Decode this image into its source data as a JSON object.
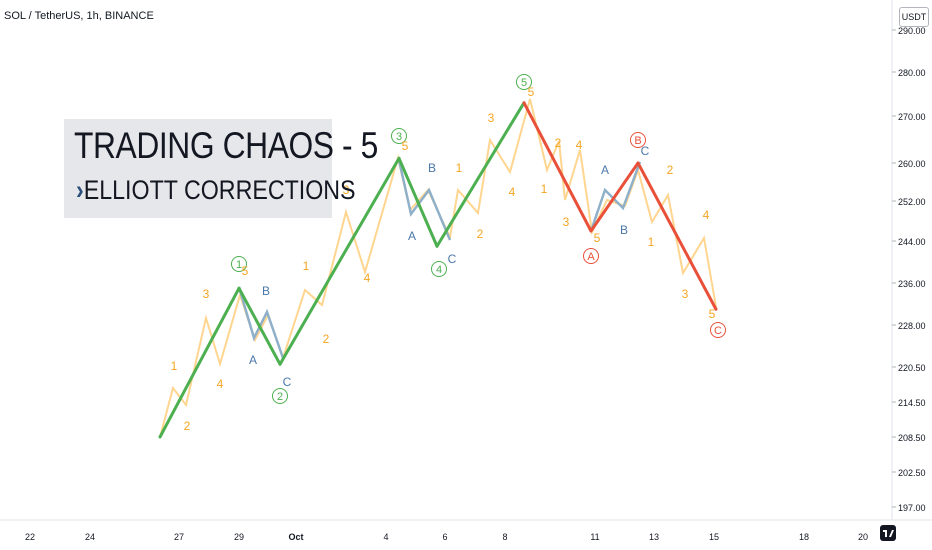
{
  "header": {
    "symbol": "SOL / TetherUS, 1h, BINANCE",
    "currency": "USDT"
  },
  "overlay": {
    "title": "TRADING CHAOS - 5",
    "subtitle_prefix": "›",
    "subtitle": "ELLIOTT CORRECTIONS"
  },
  "colors": {
    "impulse": "#4caf50",
    "correction": "#e8503a",
    "sub_corr": "#8fb0c9",
    "minor": "#ffd58f",
    "orange_label": "#f5a623",
    "blue_label": "#4a78a8",
    "green_circle": "#4caf50",
    "red_circle": "#e8503a"
  },
  "chart_data": {
    "type": "line",
    "title": "",
    "y_ticks": [
      "290.00",
      "280.00",
      "270.00",
      "260.00",
      "252.00",
      "244.00",
      "236.00",
      "228.00",
      "220.50",
      "214.50",
      "208.50",
      "202.50",
      "197.00"
    ],
    "x_ticks": [
      "22",
      "24",
      "27",
      "29",
      "Oct",
      "4",
      "6",
      "8",
      "11",
      "13",
      "15",
      "18",
      "20"
    ],
    "series": [
      {
        "name": "",
        "role": "impulse",
        "points": [
          {
            "x": "27",
            "y": 208.5
          },
          {
            "x": "29",
            "y": 235
          },
          {
            "x": "30",
            "y": 221
          },
          {
            "x": "4",
            "y": 261
          },
          {
            "x": "6",
            "y": 243
          },
          {
            "x": "8",
            "y": 273
          }
        ]
      },
      {
        "name": "",
        "role": "correction",
        "points": [
          {
            "x": "8",
            "y": 273
          },
          {
            "x": "11",
            "y": 246
          },
          {
            "x": "12",
            "y": 260
          },
          {
            "x": "15",
            "y": 231
          }
        ]
      }
    ],
    "wave_labels": [
      {
        "text": "1",
        "style": "green-circle",
        "near": "29"
      },
      {
        "text": "2",
        "style": "green-circle",
        "near": "30"
      },
      {
        "text": "3",
        "style": "green-circle",
        "near": "4"
      },
      {
        "text": "4",
        "style": "green-circle",
        "near": "6"
      },
      {
        "text": "5",
        "style": "green-circle",
        "near": "8"
      },
      {
        "text": "A",
        "style": "red-circle",
        "near": "11"
      },
      {
        "text": "B",
        "style": "red-circle",
        "near": "12"
      },
      {
        "text": "C",
        "style": "red-circle",
        "near": "15"
      }
    ],
    "minor_labels": [
      {
        "text": "1",
        "color": "orange"
      },
      {
        "text": "2",
        "color": "orange"
      },
      {
        "text": "3",
        "color": "orange"
      },
      {
        "text": "4",
        "color": "orange"
      },
      {
        "text": "5",
        "color": "orange"
      },
      {
        "text": "A",
        "color": "blue"
      },
      {
        "text": "B",
        "color": "blue"
      },
      {
        "text": "C",
        "color": "blue"
      },
      {
        "text": "1",
        "color": "orange"
      },
      {
        "text": "2",
        "color": "orange"
      },
      {
        "text": "3",
        "color": "orange"
      },
      {
        "text": "4",
        "color": "orange"
      },
      {
        "text": "5",
        "color": "orange"
      },
      {
        "text": "A",
        "color": "blue"
      },
      {
        "text": "B",
        "color": "blue"
      },
      {
        "text": "C",
        "color": "blue"
      },
      {
        "text": "1",
        "color": "orange"
      },
      {
        "text": "2",
        "color": "orange"
      },
      {
        "text": "3",
        "color": "orange"
      },
      {
        "text": "4",
        "color": "orange"
      },
      {
        "text": "5",
        "color": "orange"
      },
      {
        "text": "1",
        "color": "orange"
      },
      {
        "text": "2",
        "color": "orange"
      },
      {
        "text": "3",
        "color": "orange"
      },
      {
        "text": "4",
        "color": "orange"
      },
      {
        "text": "5",
        "color": "orange"
      },
      {
        "text": "A",
        "color": "blue"
      },
      {
        "text": "B",
        "color": "blue"
      },
      {
        "text": "C",
        "color": "blue"
      },
      {
        "text": "1",
        "color": "orange"
      },
      {
        "text": "2",
        "color": "orange"
      },
      {
        "text": "3",
        "color": "orange"
      },
      {
        "text": "4",
        "color": "orange"
      },
      {
        "text": "5",
        "color": "orange"
      }
    ]
  }
}
